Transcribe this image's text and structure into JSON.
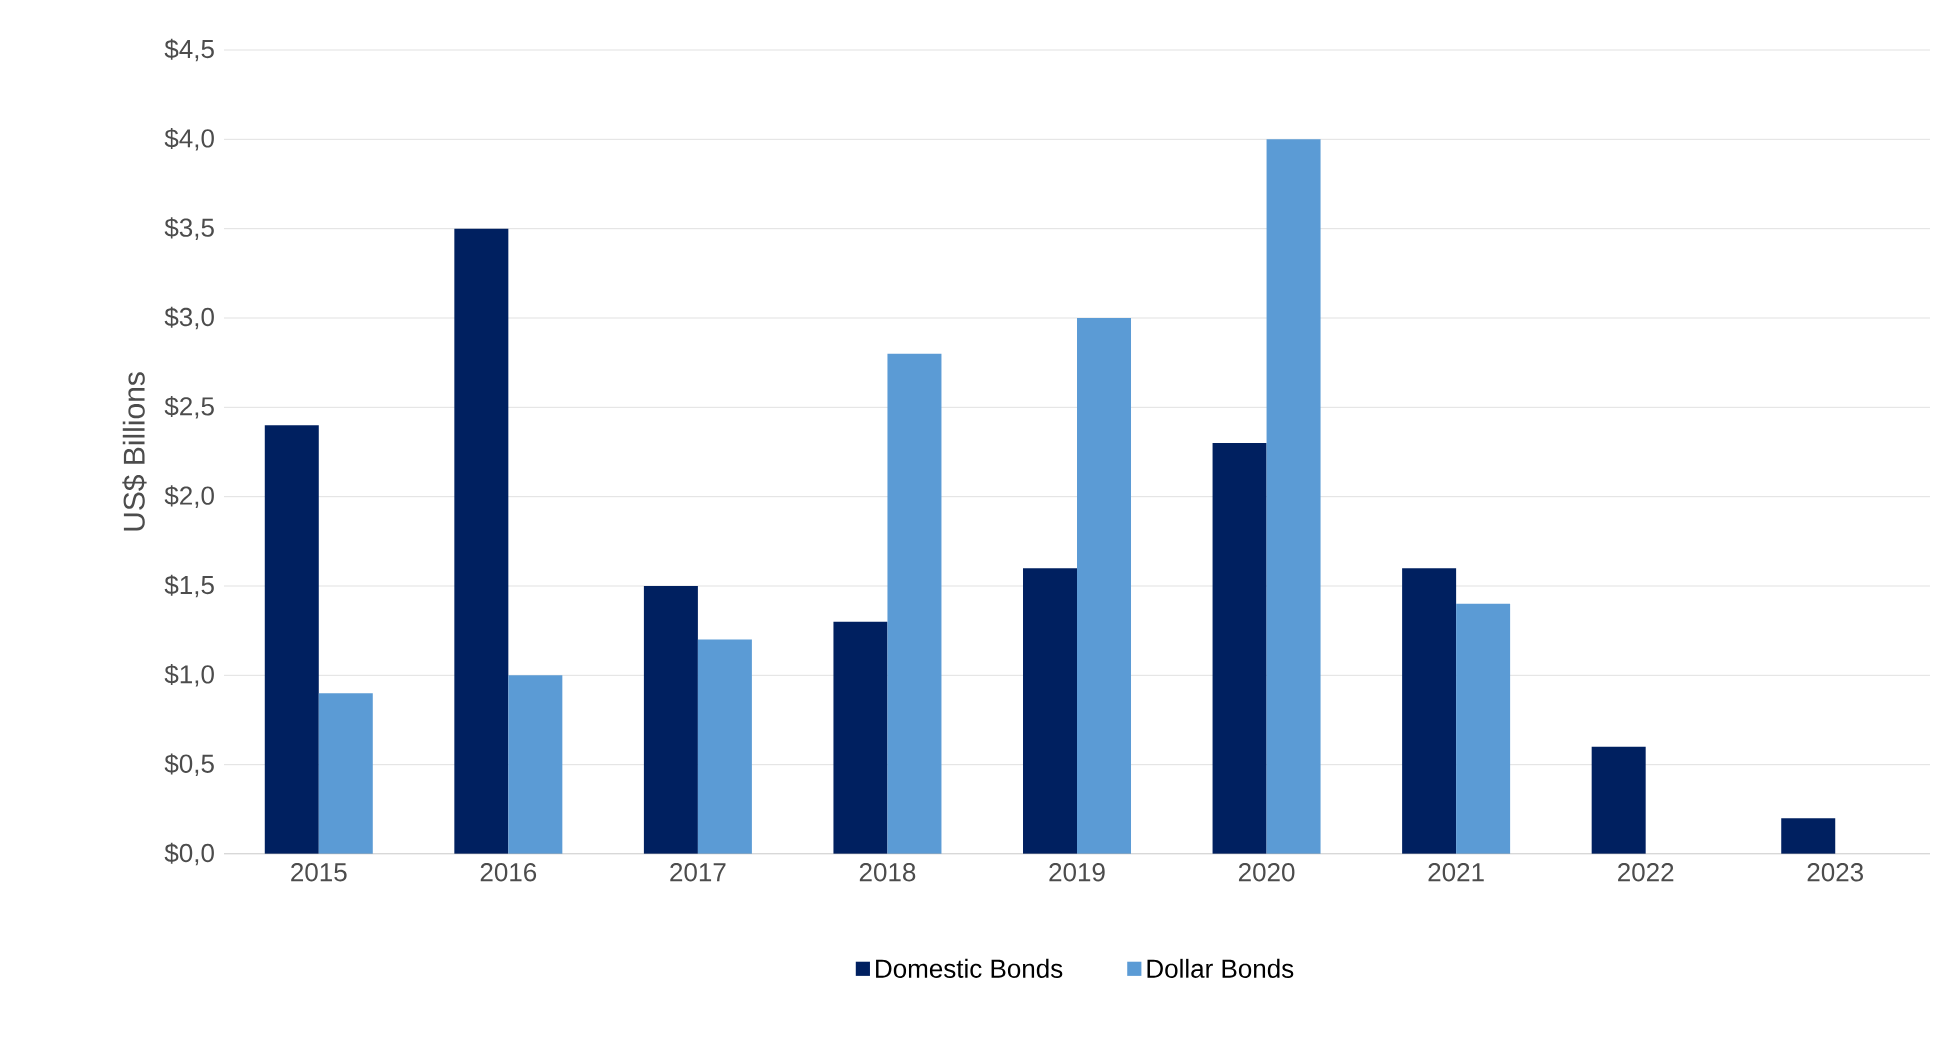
{
  "chart_data": {
    "type": "bar",
    "ylabel": "US$ Billions",
    "categories": [
      "2015",
      "2016",
      "2017",
      "2018",
      "2019",
      "2020",
      "2021",
      "2022",
      "2023"
    ],
    "series": [
      {
        "name": "Domestic Bonds",
        "color": "#002060",
        "values": [
          2.4,
          3.5,
          1.5,
          1.3,
          1.6,
          2.3,
          1.6,
          0.6,
          0.2
        ]
      },
      {
        "name": "Dollar Bonds",
        "color": "#5b9bd5",
        "values": [
          0.9,
          1.0,
          1.2,
          2.8,
          3.0,
          4.0,
          1.4,
          null,
          null
        ]
      }
    ],
    "ylim": [
      0,
      4.5
    ],
    "yticks": [
      {
        "value": 0,
        "label": "$0,0"
      },
      {
        "value": 0.5,
        "label": "$0,5"
      },
      {
        "value": 1,
        "label": "$1,0"
      },
      {
        "value": 1.5,
        "label": "$1,5"
      },
      {
        "value": 2,
        "label": "$2,0"
      },
      {
        "value": 2.5,
        "label": "$2,5"
      },
      {
        "value": 3,
        "label": "$3,0"
      },
      {
        "value": 3.5,
        "label": "$3,5"
      },
      {
        "value": 4,
        "label": "$4,0"
      },
      {
        "value": 4.5,
        "label": "$4,5"
      }
    ],
    "grid": "y",
    "legend": "bottom"
  }
}
